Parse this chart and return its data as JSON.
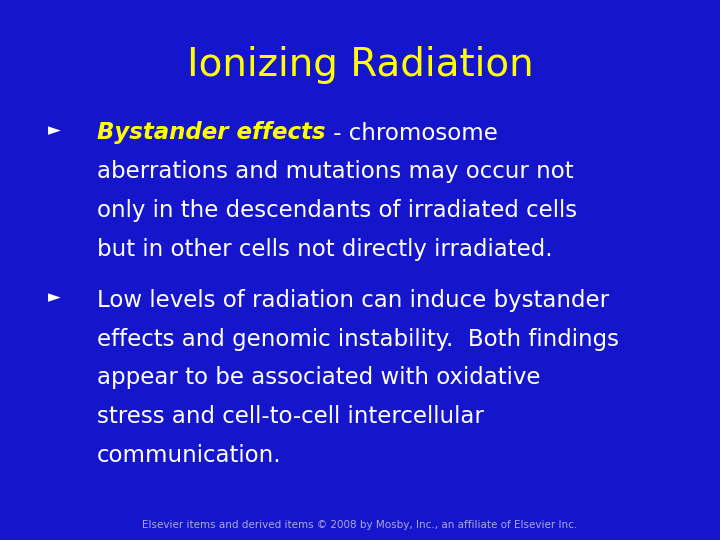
{
  "title": "Ionizing Radiation",
  "title_color": "#FFFF00",
  "title_fontsize": 28,
  "background_color": "#1515CC",
  "bullet_color": "#FFFFFF",
  "bullet1_bold": "Bystander effects",
  "bullet1_bold_color": "#FFFF00",
  "bullet1_rest": " - chromosome",
  "bullet1_line2": "aberrations and mutations may occur not",
  "bullet1_line3": "only in the descendants of irradiated cells",
  "bullet1_line4": "but in other cells not directly irradiated.",
  "bullet2_line1": "Low levels of radiation can induce bystander",
  "bullet2_line2": "effects and genomic instability.  Both findings",
  "bullet2_line3": "appear to be associated with oxidative",
  "bullet2_line4": "stress and cell-to-cell intercellular",
  "bullet2_line5": "communication.",
  "footer": "Elsevier items and derived items © 2008 by Mosby, Inc., an affiliate of Elsevier Inc.",
  "footer_color": "#AAAADD",
  "footer_fontsize": 7.5,
  "body_fontsize": 16.5,
  "bullet_fontsize": 18,
  "figwidth": 7.2,
  "figheight": 5.4,
  "dpi": 100
}
